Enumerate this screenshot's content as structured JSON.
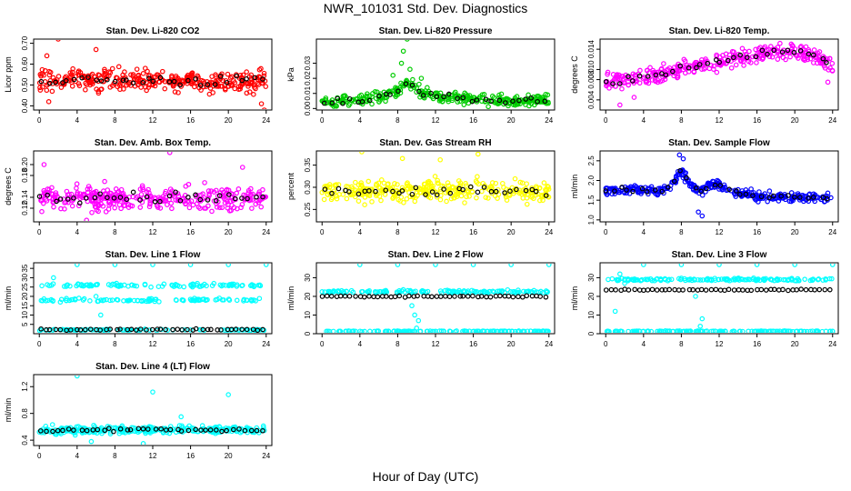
{
  "title": "NWR_101031  Std. Dev. Diagnostics",
  "xlabel": "Hour of Day (UTC)",
  "chart_data": [
    {
      "type": "scatter",
      "title": "Stan. Dev. Li-820 CO2",
      "ylabel": "Licor ppm",
      "ylim": [
        0.38,
        0.72
      ],
      "yticks": [
        "0.40",
        "0.50",
        "0.60",
        "0.70"
      ],
      "yticks_values": [
        0.4,
        0.5,
        0.6,
        0.7
      ],
      "color": "#ff0000",
      "base": [
        [
          0,
          0.53
        ],
        [
          6,
          0.52
        ],
        [
          12,
          0.52
        ],
        [
          18,
          0.52
        ],
        [
          24,
          0.52
        ]
      ],
      "spread": 0.055,
      "n": 330,
      "black_n": 34,
      "spikes": [
        [
          0.8,
          0.64
        ],
        [
          2.0,
          0.72
        ],
        [
          6.0,
          0.67
        ],
        [
          23.8,
          0.38
        ],
        [
          23.5,
          0.41
        ],
        [
          1.0,
          0.42
        ]
      ]
    },
    {
      "type": "scatter",
      "title": "Stan. Dev. Li-820 Pressure",
      "ylabel": "kPa",
      "ylim": [
        -0.001,
        0.046
      ],
      "yticks": [
        "0.00",
        "0.01",
        "0.02",
        "0.03"
      ],
      "yticks_values": [
        0,
        0.01,
        0.02,
        0.03
      ],
      "color": "#00cc00",
      "base": [
        [
          0,
          0.004
        ],
        [
          4,
          0.005
        ],
        [
          6,
          0.007
        ],
        [
          8,
          0.012
        ],
        [
          9,
          0.018
        ],
        [
          10,
          0.012
        ],
        [
          12,
          0.008
        ],
        [
          16,
          0.006
        ],
        [
          20,
          0.005
        ],
        [
          24,
          0.006
        ]
      ],
      "spread": 0.004,
      "n": 330,
      "black_n": 34,
      "spikes": [
        [
          9.0,
          0.046
        ],
        [
          8.6,
          0.038
        ],
        [
          8.4,
          0.03
        ],
        [
          9.3,
          0.026
        ],
        [
          7.5,
          0.022
        ],
        [
          10.5,
          0.02
        ]
      ]
    },
    {
      "type": "scatter",
      "title": "Stan. Dev. Li-820 Temp.",
      "ylabel": "degrees C",
      "ylim": [
        0.002,
        0.016
      ],
      "yticks": [
        "0.004",
        "0.008",
        "0.010",
        "0.014"
      ],
      "yticks_values": [
        0.004,
        0.008,
        0.01,
        0.014
      ],
      "color": "#ff00ff",
      "base": [
        [
          0,
          0.0075
        ],
        [
          4,
          0.0085
        ],
        [
          8,
          0.01
        ],
        [
          12,
          0.0115
        ],
        [
          16,
          0.013
        ],
        [
          18,
          0.0138
        ],
        [
          20,
          0.0135
        ],
        [
          22,
          0.013
        ],
        [
          24,
          0.0105
        ]
      ],
      "spread": 0.0018,
      "n": 330,
      "black_n": 34,
      "spikes": [
        [
          1.5,
          0.003
        ],
        [
          3.0,
          0.0045
        ],
        [
          23.5,
          0.0075
        ]
      ]
    },
    {
      "type": "scatter",
      "title": "Stan. Dev. Amb. Box Temp.",
      "ylabel": "degrees C",
      "ylim": [
        0.095,
        0.225
      ],
      "yticks": [
        "0.12",
        "0.14",
        "0.18",
        "0.20"
      ],
      "yticks_values": [
        0.12,
        0.14,
        0.18,
        0.2
      ],
      "color": "#ff00ff",
      "base": [
        [
          0,
          0.138
        ],
        [
          12,
          0.14
        ],
        [
          24,
          0.137
        ]
      ],
      "spread": 0.022,
      "n": 330,
      "black_n": 34,
      "spikes": [
        [
          13.8,
          0.222
        ],
        [
          0.5,
          0.2
        ],
        [
          21.5,
          0.195
        ],
        [
          5.0,
          0.098
        ]
      ]
    },
    {
      "type": "scatter",
      "title": "Stan. Dev. Gas Stream RH",
      "ylabel": "percent",
      "ylim": [
        0.222,
        0.382
      ],
      "yticks": [
        "0.25",
        "0.30",
        "0.35"
      ],
      "yticks_values": [
        0.25,
        0.3,
        0.35
      ],
      "color": "#ffff00",
      "base": [
        [
          0,
          0.29
        ],
        [
          12,
          0.292
        ],
        [
          24,
          0.29
        ]
      ],
      "spread": 0.025,
      "n": 330,
      "black_n": 34,
      "spikes": [
        [
          4.2,
          0.38
        ],
        [
          16.5,
          0.375
        ],
        [
          12.5,
          0.362
        ],
        [
          8.5,
          0.365
        ]
      ]
    },
    {
      "type": "scatter",
      "title": "Stan. Dev. Sample Flow",
      "ylabel": "ml/min",
      "ylim": [
        0.95,
        2.75
      ],
      "yticks": [
        "1.0",
        "1.5",
        "2.0",
        "2.5"
      ],
      "yticks_values": [
        1.0,
        1.5,
        2.0,
        2.5
      ],
      "color": "#0000ff",
      "base": [
        [
          0,
          1.75
        ],
        [
          6,
          1.75
        ],
        [
          7,
          1.9
        ],
        [
          8,
          2.25
        ],
        [
          9,
          1.9
        ],
        [
          10,
          1.7
        ],
        [
          11,
          1.9
        ],
        [
          12,
          1.85
        ],
        [
          14,
          1.7
        ],
        [
          16,
          1.6
        ],
        [
          24,
          1.55
        ]
      ],
      "spread": 0.12,
      "n": 330,
      "black_n": 34,
      "spikes": [
        [
          7.8,
          2.65
        ],
        [
          8.2,
          2.55
        ],
        [
          9.8,
          1.2
        ],
        [
          10.2,
          1.1
        ],
        [
          11.8,
          2.0
        ]
      ]
    },
    {
      "type": "scatter",
      "title": "Stan. Dev. Line 1 Flow",
      "ylabel": "ml/min",
      "ylim": [
        0,
        38
      ],
      "yticks": [
        "5",
        "10",
        "15",
        "20",
        "25",
        "30",
        "35"
      ],
      "yticks_values": [
        5,
        10,
        15,
        20,
        25,
        30,
        35
      ],
      "color": "#00ffff",
      "bands": [
        [
          26,
          1.0
        ],
        [
          18,
          1.0
        ],
        [
          2,
          0.4
        ]
      ],
      "black_bands": [
        2.2
      ],
      "n": 300,
      "black_n": 45,
      "spikes": [
        [
          4,
          37
        ],
        [
          8,
          37
        ],
        [
          12,
          37
        ],
        [
          16,
          37
        ],
        [
          20,
          37
        ],
        [
          24,
          37
        ],
        [
          1.5,
          30
        ],
        [
          6.5,
          10
        ],
        [
          6.0,
          20
        ]
      ]
    },
    {
      "type": "scatter",
      "title": "Stan. Dev. Line 2 Flow",
      "ylabel": "ml/min",
      "ylim": [
        0,
        38
      ],
      "yticks": [
        "0",
        "10",
        "20",
        "30"
      ],
      "yticks_values": [
        0,
        10,
        20,
        30
      ],
      "color": "#00ffff",
      "bands": [
        [
          22.5,
          0.8
        ],
        [
          1.3,
          0.2
        ]
      ],
      "black_bands": [
        20
      ],
      "n": 280,
      "black_n": 50,
      "spikes": [
        [
          4,
          37
        ],
        [
          8,
          37
        ],
        [
          12,
          37
        ],
        [
          16,
          37
        ],
        [
          20,
          37
        ],
        [
          24,
          37
        ],
        [
          9.5,
          15
        ],
        [
          9.8,
          10
        ],
        [
          10.2,
          7
        ],
        [
          10.0,
          3
        ]
      ]
    },
    {
      "type": "scatter",
      "title": "Stan. Dev. Line 3 Flow",
      "ylabel": "ml/min",
      "ylim": [
        0,
        38
      ],
      "yticks": [
        "0",
        "10",
        "20",
        "30"
      ],
      "yticks_values": [
        0,
        10,
        20,
        30
      ],
      "color": "#00ffff",
      "bands": [
        [
          29,
          0.8
        ],
        [
          1.3,
          0.2
        ]
      ],
      "black_bands": [
        23.5
      ],
      "n": 280,
      "black_n": 50,
      "spikes": [
        [
          4,
          37
        ],
        [
          8,
          37
        ],
        [
          12,
          37
        ],
        [
          16,
          37
        ],
        [
          20,
          37
        ],
        [
          24,
          37
        ],
        [
          1.5,
          32
        ],
        [
          2.0,
          27
        ],
        [
          9.5,
          20
        ],
        [
          10.2,
          8
        ],
        [
          10.0,
          4
        ],
        [
          1.0,
          12
        ]
      ]
    },
    {
      "type": "scatter",
      "title": "Stan. Dev. Line 4 (LT) Flow",
      "ylabel": "ml/min",
      "ylim": [
        0.32,
        1.38
      ],
      "yticks": [
        "0.4",
        "0.8",
        "1.2"
      ],
      "yticks_values": [
        0.4,
        0.8,
        1.2
      ],
      "color": "#00ffff",
      "base": [
        [
          0,
          0.55
        ],
        [
          12,
          0.56
        ],
        [
          24,
          0.55
        ]
      ],
      "spread": 0.06,
      "n": 300,
      "black_n": 40,
      "spikes": [
        [
          4,
          1.36
        ],
        [
          12,
          1.12
        ],
        [
          20,
          1.08
        ],
        [
          11,
          0.35
        ],
        [
          15,
          0.75
        ],
        [
          5.5,
          0.38
        ]
      ]
    }
  ],
  "xticks": [
    "0",
    "4",
    "8",
    "12",
    "16",
    "20",
    "24"
  ],
  "xtick_values": [
    0,
    4,
    8,
    12,
    16,
    20,
    24
  ],
  "xlim": [
    -0.6,
    24.6
  ]
}
